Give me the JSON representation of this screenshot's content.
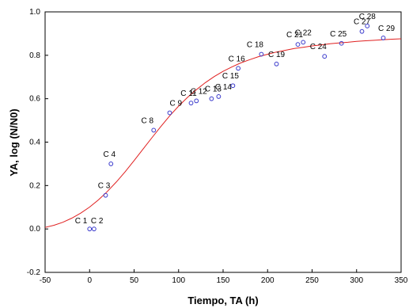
{
  "chart_data": {
    "type": "scatter",
    "xlabel": "Tiempo, TA (h)",
    "ylabel": "YA, log (N/N0)",
    "xlim": [
      -50,
      350
    ],
    "ylim": [
      -0.2,
      1.0
    ],
    "xticks": [
      "-50",
      "0",
      "50",
      "100",
      "150",
      "200",
      "250",
      "300",
      "350"
    ],
    "yticks": [
      "-0.2",
      "0.0",
      "0.2",
      "0.4",
      "0.6",
      "0.8",
      "1.0"
    ],
    "grid": false,
    "colors": {
      "points": "#3a3acc",
      "fit": "#e02020",
      "axes": "#000000"
    },
    "points": [
      {
        "label": "C 1",
        "x": 0,
        "y": 0.0
      },
      {
        "label": "C 2",
        "x": 5,
        "y": 0.0
      },
      {
        "label": "C 3",
        "x": 18,
        "y": 0.155
      },
      {
        "label": "C 4",
        "x": 24,
        "y": 0.3
      },
      {
        "label": "C 8",
        "x": 72,
        "y": 0.455
      },
      {
        "label": "C 9",
        "x": 90,
        "y": 0.535
      },
      {
        "label": "C 11",
        "x": 114,
        "y": 0.58
      },
      {
        "label": "C 12",
        "x": 120,
        "y": 0.59
      },
      {
        "label": "C 13",
        "x": 137,
        "y": 0.6
      },
      {
        "label": "C 14",
        "x": 145,
        "y": 0.61
      },
      {
        "label": "C 15",
        "x": 161,
        "y": 0.66
      },
      {
        "label": "C 16",
        "x": 167,
        "y": 0.74
      },
      {
        "label": "C 18",
        "x": 193,
        "y": 0.805
      },
      {
        "label": "C 19",
        "x": 210,
        "y": 0.76
      },
      {
        "label": "C 21",
        "x": 234,
        "y": 0.85
      },
      {
        "label": "C 22",
        "x": 240,
        "y": 0.86
      },
      {
        "label": "C 24",
        "x": 264,
        "y": 0.795
      },
      {
        "label": "C 25",
        "x": 283,
        "y": 0.855
      },
      {
        "label": "C 27",
        "x": 306,
        "y": 0.91
      },
      {
        "label": "C 28",
        "x": 312,
        "y": 0.935
      },
      {
        "label": "C 29",
        "x": 330,
        "y": 0.88
      }
    ],
    "fit_curve": {
      "x": [
        -50,
        -40,
        -30,
        -20,
        -10,
        0,
        10,
        20,
        30,
        40,
        50,
        60,
        70,
        80,
        90,
        100,
        110,
        120,
        130,
        140,
        150,
        160,
        170,
        180,
        190,
        200,
        210,
        220,
        230,
        240,
        250,
        260,
        270,
        280,
        290,
        300,
        310,
        320,
        330,
        340,
        350
      ],
      "y": [
        0.007,
        0.017,
        0.031,
        0.05,
        0.073,
        0.101,
        0.134,
        0.173,
        0.216,
        0.264,
        0.315,
        0.368,
        0.42,
        0.472,
        0.521,
        0.566,
        0.606,
        0.642,
        0.674,
        0.702,
        0.726,
        0.747,
        0.765,
        0.78,
        0.794,
        0.805,
        0.815,
        0.823,
        0.831,
        0.837,
        0.843,
        0.848,
        0.853,
        0.857,
        0.86,
        0.864,
        0.867,
        0.869,
        0.872,
        0.874,
        0.876
      ]
    }
  }
}
